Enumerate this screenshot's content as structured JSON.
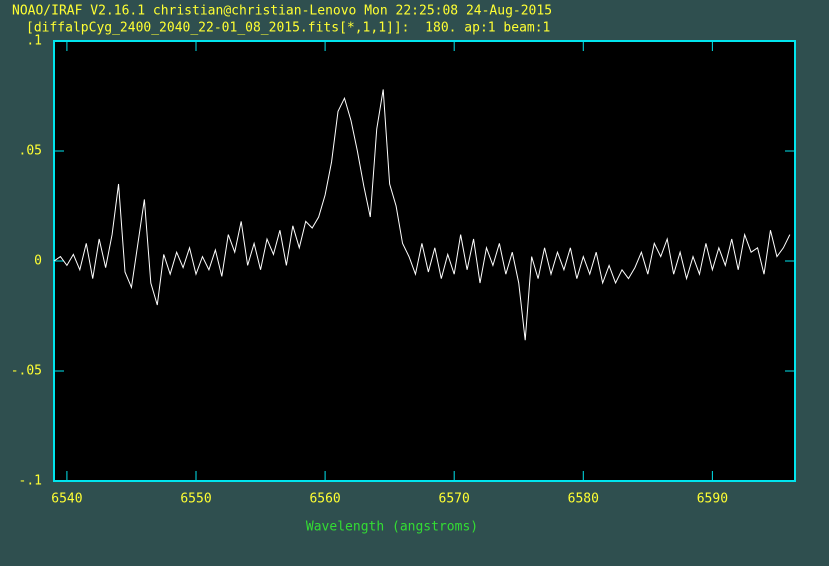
{
  "chart_data": {
    "type": "line",
    "title": "NOAO/IRAF V2.16.1 christian@christian-Lenovo Mon 22:25:08 24-Aug-2015",
    "subtitle": "[diffalpCyg_2400_2040_22-01_08_2015.fits[*,1,1]]:  180. ap:1 beam:1",
    "x_label": "Wavelength (angstroms)",
    "xlim": [
      6539.0,
      6596.4
    ],
    "ylim": [
      -0.1,
      0.1
    ],
    "xticks": [
      6540,
      6550,
      6560,
      6570,
      6580,
      6590
    ],
    "yticks": [
      {
        "value": 0.1,
        "label": ".1"
      },
      {
        "value": 0.05,
        "label": ".05"
      },
      0,
      {
        "value": -0.05,
        "label": "-.05"
      },
      {
        "value": -0.1,
        "label": "-.1"
      }
    ],
    "color": "#ffffff",
    "x": [
      6539.0,
      6539.5,
      6540.0,
      6540.5,
      6541.0,
      6541.5,
      6542.0,
      6542.5,
      6543.0,
      6543.5,
      6544.0,
      6544.5,
      6545.0,
      6545.5,
      6546.0,
      6546.5,
      6547.0,
      6547.5,
      6548.0,
      6548.5,
      6549.0,
      6549.5,
      6550.0,
      6550.5,
      6551.0,
      6551.5,
      6552.0,
      6552.5,
      6553.0,
      6553.5,
      6554.0,
      6554.5,
      6555.0,
      6555.5,
      6556.0,
      6556.5,
      6557.0,
      6557.5,
      6558.0,
      6558.5,
      6559.0,
      6559.5,
      6560.0,
      6560.5,
      6561.0,
      6561.5,
      6562.0,
      6562.5,
      6563.0,
      6563.5,
      6564.0,
      6564.5,
      6565.0,
      6565.5,
      6566.0,
      6566.5,
      6567.0,
      6567.5,
      6568.0,
      6568.5,
      6569.0,
      6569.5,
      6570.0,
      6570.5,
      6571.0,
      6571.5,
      6572.0,
      6572.5,
      6573.0,
      6573.5,
      6574.0,
      6574.5,
      6575.0,
      6575.5,
      6576.0,
      6576.5,
      6577.0,
      6577.5,
      6578.0,
      6578.5,
      6579.0,
      6579.5,
      6580.0,
      6580.5,
      6581.0,
      6581.5,
      6582.0,
      6582.5,
      6583.0,
      6583.5,
      6584.0,
      6584.5,
      6585.0,
      6585.5,
      6586.0,
      6586.5,
      6587.0,
      6587.5,
      6588.0,
      6588.5,
      6589.0,
      6589.5,
      6590.0,
      6590.5,
      6591.0,
      6591.5,
      6592.0,
      6592.5,
      6593.0,
      6593.5,
      6594.0,
      6594.5,
      6595.0,
      6595.5,
      6596.0
    ],
    "values": [
      0.0,
      0.002,
      -0.002,
      0.003,
      -0.004,
      0.008,
      -0.008,
      0.01,
      -0.003,
      0.012,
      0.035,
      -0.005,
      -0.012,
      0.008,
      0.028,
      -0.01,
      -0.02,
      0.003,
      -0.006,
      0.004,
      -0.003,
      0.006,
      -0.006,
      0.002,
      -0.004,
      0.005,
      -0.007,
      0.012,
      0.004,
      0.018,
      -0.002,
      0.008,
      -0.004,
      0.01,
      0.003,
      0.014,
      -0.002,
      0.016,
      0.006,
      0.018,
      0.015,
      0.02,
      0.03,
      0.045,
      0.068,
      0.074,
      0.064,
      0.05,
      0.034,
      0.02,
      0.06,
      0.078,
      0.035,
      0.025,
      0.008,
      0.002,
      -0.006,
      0.008,
      -0.005,
      0.006,
      -0.008,
      0.003,
      -0.006,
      0.012,
      -0.004,
      0.01,
      -0.01,
      0.006,
      -0.002,
      0.008,
      -0.006,
      0.004,
      -0.01,
      -0.036,
      0.002,
      -0.008,
      0.006,
      -0.006,
      0.004,
      -0.004,
      0.006,
      -0.008,
      0.002,
      -0.006,
      0.004,
      -0.01,
      -0.002,
      -0.01,
      -0.004,
      -0.008,
      -0.003,
      0.004,
      -0.006,
      0.008,
      0.002,
      0.01,
      -0.006,
      0.004,
      -0.008,
      0.002,
      -0.006,
      0.008,
      -0.004,
      0.006,
      -0.002,
      0.01,
      -0.004,
      0.012,
      0.004,
      0.006,
      -0.006,
      0.014,
      0.002,
      0.006,
      0.012
    ]
  }
}
